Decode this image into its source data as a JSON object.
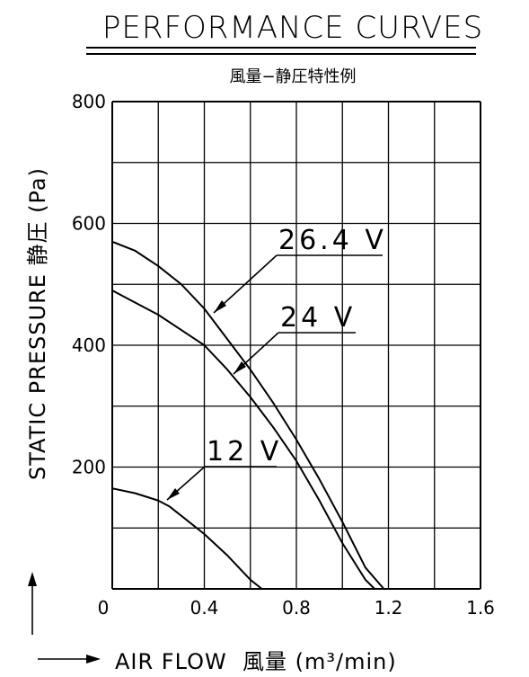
{
  "title": "PERFORMANCE CURVES",
  "subtitle": "風量−静圧特性例",
  "chart_data": {
    "type": "line",
    "xlabel": "AIR FLOW  風量 (m³/min)",
    "ylabel": "STATIC PRESSURE  静圧 (Pa)",
    "xlim": [
      0,
      1.6
    ],
    "ylim": [
      0,
      800
    ],
    "x_ticks": [
      "0",
      "0.4",
      "0.8",
      "1.2",
      "1.6"
    ],
    "y_ticks": [
      "200",
      "400",
      "600",
      "800"
    ],
    "grid": true,
    "series": [
      {
        "name": "26.4 V",
        "x": [
          0,
          0.1,
          0.2,
          0.3,
          0.4,
          0.5,
          0.6,
          0.7,
          0.8,
          0.9,
          1.0,
          1.1,
          1.18
        ],
        "y": [
          570,
          555,
          530,
          500,
          460,
          410,
          360,
          305,
          245,
          180,
          110,
          35,
          0
        ]
      },
      {
        "name": "24 V",
        "x": [
          0,
          0.1,
          0.2,
          0.3,
          0.4,
          0.5,
          0.6,
          0.7,
          0.8,
          0.9,
          1.0,
          1.1,
          1.14
        ],
        "y": [
          490,
          470,
          450,
          425,
          400,
          360,
          315,
          265,
          210,
          145,
          75,
          15,
          0
        ]
      },
      {
        "name": "12 V",
        "x": [
          0,
          0.1,
          0.2,
          0.25,
          0.3,
          0.4,
          0.5,
          0.6,
          0.65
        ],
        "y": [
          165,
          157,
          145,
          135,
          120,
          90,
          55,
          15,
          0
        ]
      }
    ]
  }
}
